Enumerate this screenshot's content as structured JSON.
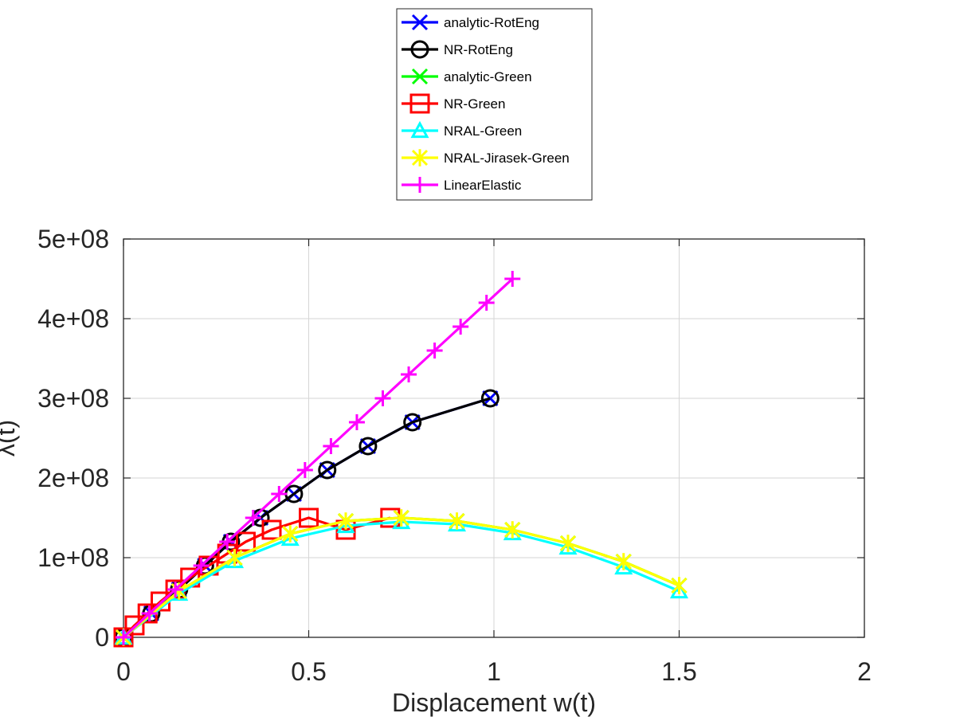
{
  "chart_data": {
    "type": "line",
    "xlabel": "Displacement w(t)",
    "ylabel": "λ(t)",
    "xlim": [
      0,
      2
    ],
    "ylim": [
      0,
      500000000
    ],
    "x_ticks": [
      0,
      0.5,
      1,
      1.5,
      2
    ],
    "x_tick_labels": [
      "0",
      "0.5",
      "1",
      "1.5",
      "2"
    ],
    "y_ticks": [
      0,
      100000000,
      200000000,
      300000000,
      400000000,
      500000000
    ],
    "y_tick_labels": [
      "0",
      "1e+08",
      "2e+08",
      "3e+08",
      "4e+08",
      "5e+08"
    ],
    "grid": true,
    "legend_position": "top-center",
    "series": [
      {
        "name": "analytic-RotEng",
        "color": "#0000ff",
        "marker": "x",
        "x": [
          0,
          0.075,
          0.15,
          0.22,
          0.29,
          0.37,
          0.46,
          0.55,
          0.66,
          0.78,
          0.99
        ],
        "y": [
          0,
          30000000,
          60000000,
          90000000,
          120000000,
          150000000,
          180000000,
          210000000,
          240000000,
          270000000,
          300000000
        ]
      },
      {
        "name": "NR-RotEng",
        "color": "#000000",
        "marker": "circle",
        "x": [
          0,
          0.075,
          0.15,
          0.22,
          0.29,
          0.37,
          0.46,
          0.55,
          0.66,
          0.78,
          0.99
        ],
        "y": [
          0,
          30000000,
          60000000,
          90000000,
          120000000,
          150000000,
          180000000,
          210000000,
          240000000,
          270000000,
          300000000
        ]
      },
      {
        "name": "analytic-Green",
        "color": "#00ff00",
        "marker": "x",
        "x": [
          0,
          0.15,
          0.3,
          0.45,
          0.6,
          0.75,
          0.9,
          1.05,
          1.2,
          1.35,
          1.5
        ],
        "y": [
          0,
          58000000,
          100000000,
          130000000,
          146000000,
          150000000,
          146000000,
          135000000,
          118000000,
          95000000,
          65000000
        ]
      },
      {
        "name": "NR-Green",
        "color": "#ff0000",
        "marker": "square",
        "x": [
          0,
          0.03,
          0.065,
          0.1,
          0.14,
          0.18,
          0.23,
          0.28,
          0.33,
          0.4,
          0.5,
          0.6,
          0.72
        ],
        "y": [
          0,
          15000000,
          30000000,
          45000000,
          60000000,
          75000000,
          90000000,
          105000000,
          120000000,
          135000000,
          150000000,
          135000000,
          150000000
        ]
      },
      {
        "name": "NRAL-Green",
        "color": "#00ffff",
        "marker": "triangle",
        "x": [
          0,
          0.15,
          0.3,
          0.45,
          0.6,
          0.75,
          0.9,
          1.05,
          1.2,
          1.35,
          1.5
        ],
        "y": [
          0,
          55000000,
          96000000,
          124000000,
          140000000,
          145000000,
          142000000,
          131000000,
          113000000,
          88000000,
          58000000
        ]
      },
      {
        "name": "NRAL-Jirasek-Green",
        "color": "#ffff00",
        "marker": "asterisk",
        "x": [
          0,
          0.15,
          0.3,
          0.45,
          0.6,
          0.75,
          0.9,
          1.05,
          1.2,
          1.35,
          1.5
        ],
        "y": [
          0,
          58000000,
          100000000,
          130000000,
          146000000,
          150000000,
          146000000,
          135000000,
          118000000,
          95000000,
          65000000
        ]
      },
      {
        "name": "LinearElastic",
        "color": "#ff00ff",
        "marker": "plus",
        "x": [
          0,
          0.07,
          0.14,
          0.21,
          0.28,
          0.35,
          0.42,
          0.49,
          0.56,
          0.63,
          0.7,
          0.77,
          0.84,
          0.91,
          0.98,
          1.05
        ],
        "y": [
          0,
          30000000,
          60000000,
          90000000,
          120000000,
          150000000,
          180000000,
          210000000,
          240000000,
          270000000,
          300000000,
          330000000,
          360000000,
          390000000,
          420000000,
          450000000
        ]
      }
    ]
  }
}
